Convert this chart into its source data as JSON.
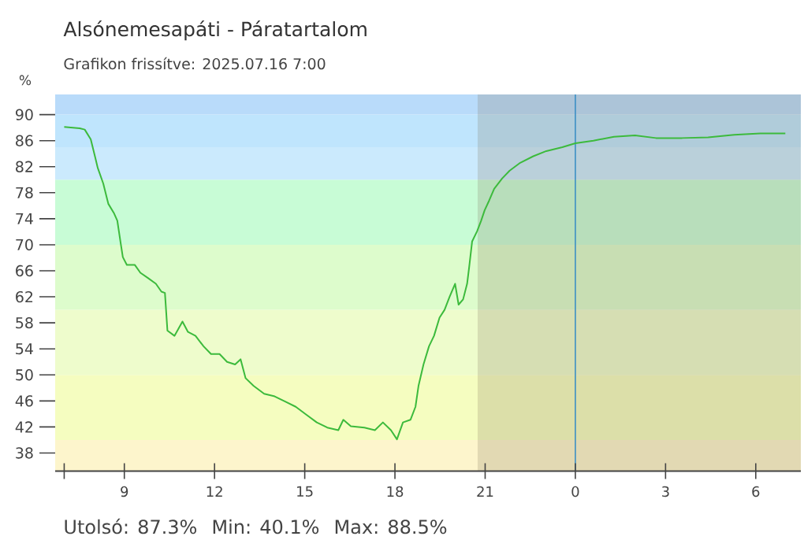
{
  "chart_data": {
    "type": "line",
    "title": "Alsónemesapáti - Páratartalom",
    "subtitle": "Grafikon frissítve: 2025.07.16 7:00",
    "ylabel": "%",
    "annotations": [
      "Utolsó: 87.3%",
      "Min: 40.1%",
      "Max: 88.5%"
    ],
    "x": [
      "2025-07-15T07:00",
      "2025-07-15T07:31",
      "2025-07-15T07:41",
      "2025-07-15T07:53",
      "2025-07-15T08:02",
      "2025-07-15T08:07",
      "2025-07-15T08:18",
      "2025-07-15T08:28",
      "2025-07-15T08:39",
      "2025-07-15T08:46",
      "2025-07-15T08:53",
      "2025-07-15T08:57",
      "2025-07-15T09:05",
      "2025-07-15T09:21",
      "2025-07-15T09:32",
      "2025-07-15T09:47",
      "2025-07-15T10:03",
      "2025-07-15T10:14",
      "2025-07-15T10:21",
      "2025-07-15T10:26",
      "2025-07-15T10:40",
      "2025-07-15T10:56",
      "2025-07-15T11:07",
      "2025-07-15T11:22",
      "2025-07-15T11:38",
      "2025-07-15T11:53",
      "2025-07-15T12:10",
      "2025-07-15T12:25",
      "2025-07-15T12:41",
      "2025-07-15T12:52",
      "2025-07-15T13:02",
      "2025-07-15T13:18",
      "2025-07-15T13:39",
      "2025-07-15T14:00",
      "2025-07-15T14:21",
      "2025-07-15T14:42",
      "2025-07-15T15:03",
      "2025-07-15T15:24",
      "2025-07-15T15:45",
      "2025-07-15T16:07",
      "2025-07-15T16:17",
      "2025-07-15T16:32",
      "2025-07-15T16:59",
      "2025-07-15T17:20",
      "2025-07-15T17:36",
      "2025-07-15T17:52",
      "2025-07-15T18:04",
      "2025-07-15T18:16",
      "2025-07-15T18:31",
      "2025-07-15T18:41",
      "2025-07-15T18:47",
      "2025-07-15T18:57",
      "2025-07-15T19:08",
      "2025-07-15T19:18",
      "2025-07-15T19:29",
      "2025-07-15T19:39",
      "2025-07-15T19:49",
      "2025-07-15T20:00",
      "2025-07-15T20:07",
      "2025-07-15T20:16",
      "2025-07-15T20:24",
      "2025-07-15T20:28",
      "2025-07-15T20:34",
      "2025-07-15T20:44",
      "2025-07-15T20:52",
      "2025-07-15T20:59",
      "2025-07-15T21:08",
      "2025-07-15T21:18",
      "2025-07-15T21:34",
      "2025-07-15T21:49",
      "2025-07-15T22:10",
      "2025-07-15T22:36",
      "2025-07-15T23:02",
      "2025-07-15T23:34",
      "2025-07-16T00:00",
      "2025-07-16T00:36",
      "2025-07-16T01:17",
      "2025-07-16T01:59",
      "2025-07-16T02:41",
      "2025-07-16T03:33",
      "2025-07-16T04:25",
      "2025-07-16T05:17",
      "2025-07-16T06:09",
      "2025-07-16T06:59"
    ],
    "values": [
      88.1,
      87.9,
      87.7,
      86.2,
      83.4,
      81.8,
      79.4,
      76.3,
      74.9,
      73.7,
      70.1,
      68.1,
      66.9,
      66.9,
      65.7,
      64.9,
      64.0,
      62.8,
      62.6,
      56.8,
      56.0,
      58.2,
      56.6,
      56.0,
      54.4,
      53.2,
      53.2,
      52.0,
      51.6,
      52.4,
      49.5,
      48.3,
      47.1,
      46.7,
      45.9,
      45.1,
      43.9,
      42.7,
      41.9,
      41.5,
      43.1,
      42.1,
      41.9,
      41.5,
      42.7,
      41.5,
      40.1,
      42.7,
      43.1,
      45.1,
      48.3,
      51.6,
      54.4,
      56.0,
      58.8,
      60.0,
      62.0,
      64.0,
      60.8,
      61.6,
      64.0,
      66.5,
      70.5,
      72.1,
      73.7,
      75.3,
      76.8,
      78.6,
      80.2,
      81.4,
      82.6,
      83.6,
      84.4,
      85.0,
      85.6,
      86.0,
      86.6,
      86.8,
      86.4,
      86.4,
      86.5,
      86.9,
      87.1,
      87.1
    ],
    "color": "#3cba3c",
    "xlim": [
      "2025-07-15T06:42",
      "2025-07-16T07:30"
    ],
    "ylim": [
      35.2,
      93.1
    ],
    "xticks": [
      {
        "value": "2025-07-15T07:00",
        "label": null
      },
      {
        "value": "2025-07-15T09:00",
        "label": "9"
      },
      {
        "value": "2025-07-15T12:00",
        "label": "12"
      },
      {
        "value": "2025-07-15T15:00",
        "label": "15"
      },
      {
        "value": "2025-07-15T18:00",
        "label": "18"
      },
      {
        "value": "2025-07-15T21:00",
        "label": "21"
      },
      {
        "value": "2025-07-16T00:00",
        "label": "0"
      },
      {
        "value": "2025-07-16T03:00",
        "label": "3"
      },
      {
        "value": "2025-07-16T06:00",
        "label": "6"
      }
    ],
    "yticks": [
      38,
      42,
      46,
      50,
      54,
      58,
      62,
      66,
      70,
      74,
      78,
      82,
      86,
      90
    ],
    "bands": [
      {
        "axis": "y",
        "from": 35.2,
        "to": 40,
        "color": "#fdf5cc"
      },
      {
        "axis": "y",
        "from": 40,
        "to": 50,
        "color": "#f5fdc0"
      },
      {
        "axis": "y",
        "from": 50,
        "to": 60,
        "color": "#eefccc"
      },
      {
        "axis": "y",
        "from": 60,
        "to": 70,
        "color": "#ddfccc"
      },
      {
        "axis": "y",
        "from": 70,
        "to": 80,
        "color": "#c8fcd6"
      },
      {
        "axis": "y",
        "from": 80,
        "to": 85,
        "color": "#cbeafd"
      },
      {
        "axis": "y",
        "from": 85,
        "to": 90,
        "color": "#bfe5fd"
      },
      {
        "axis": "y",
        "from": 90,
        "to": 93.1,
        "color": "#b9dbfa"
      },
      {
        "axis": "x",
        "from": "2025-07-15T20:45",
        "to": "2025-07-16T07:30",
        "color": "#7a6a50"
      }
    ],
    "ref_lines": [
      {
        "axis": "x",
        "value": "2025-07-16T00:00",
        "color": "#3b8fc4"
      }
    ]
  }
}
